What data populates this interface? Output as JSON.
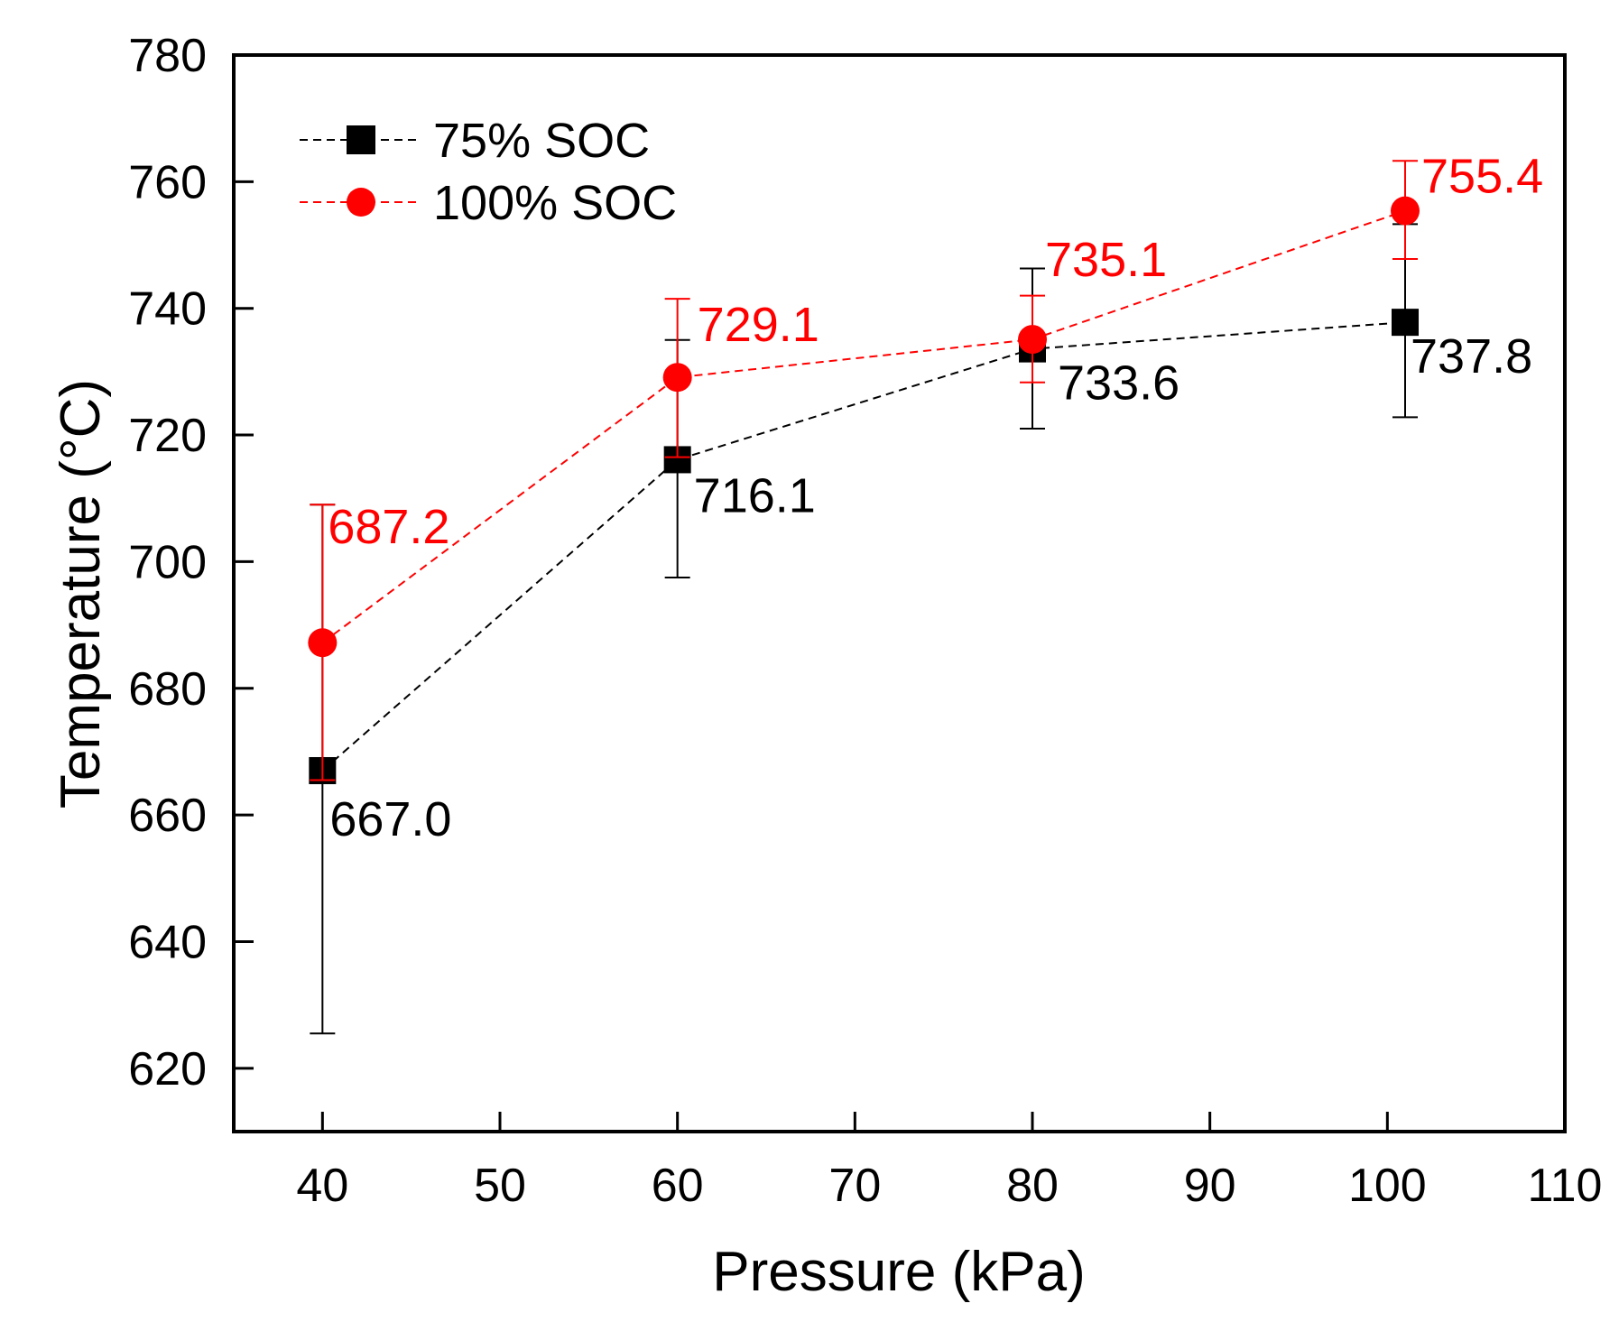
{
  "chart_data": {
    "type": "line",
    "xlabel": "Pressure (kPa)",
    "ylabel": "Temperature (°C)",
    "xlim": [
      35,
      110
    ],
    "ylim": [
      610,
      780
    ],
    "xticks": [
      40,
      50,
      60,
      70,
      80,
      90,
      100,
      110
    ],
    "yticks": [
      620,
      640,
      660,
      680,
      700,
      720,
      740,
      760,
      780
    ],
    "grid": false,
    "legend_position": "top-left",
    "series": [
      {
        "name": "75% SOC",
        "color": "#000000",
        "marker": "square",
        "line_style": "dashed",
        "x": [
          40,
          60,
          80,
          101
        ],
        "y": [
          667.0,
          716.1,
          733.6,
          737.8
        ],
        "err_low": [
          625.5,
          697.5,
          721.0,
          722.8
        ],
        "err_high": [
          709.0,
          735.0,
          746.3,
          753.3
        ],
        "labels": [
          "667.0",
          "716.1",
          "733.6",
          "737.8"
        ]
      },
      {
        "name": "100% SOC",
        "color": "#ff0000",
        "marker": "circle",
        "line_style": "dashed",
        "x": [
          40,
          60,
          80,
          101
        ],
        "y": [
          687.2,
          729.1,
          735.1,
          755.4
        ],
        "err_low": [
          665.5,
          716.5,
          728.3,
          747.8
        ],
        "err_high": [
          709.0,
          741.5,
          742.0,
          763.3
        ],
        "labels": [
          "687.2",
          "729.1",
          "735.1",
          "755.4"
        ]
      }
    ]
  }
}
